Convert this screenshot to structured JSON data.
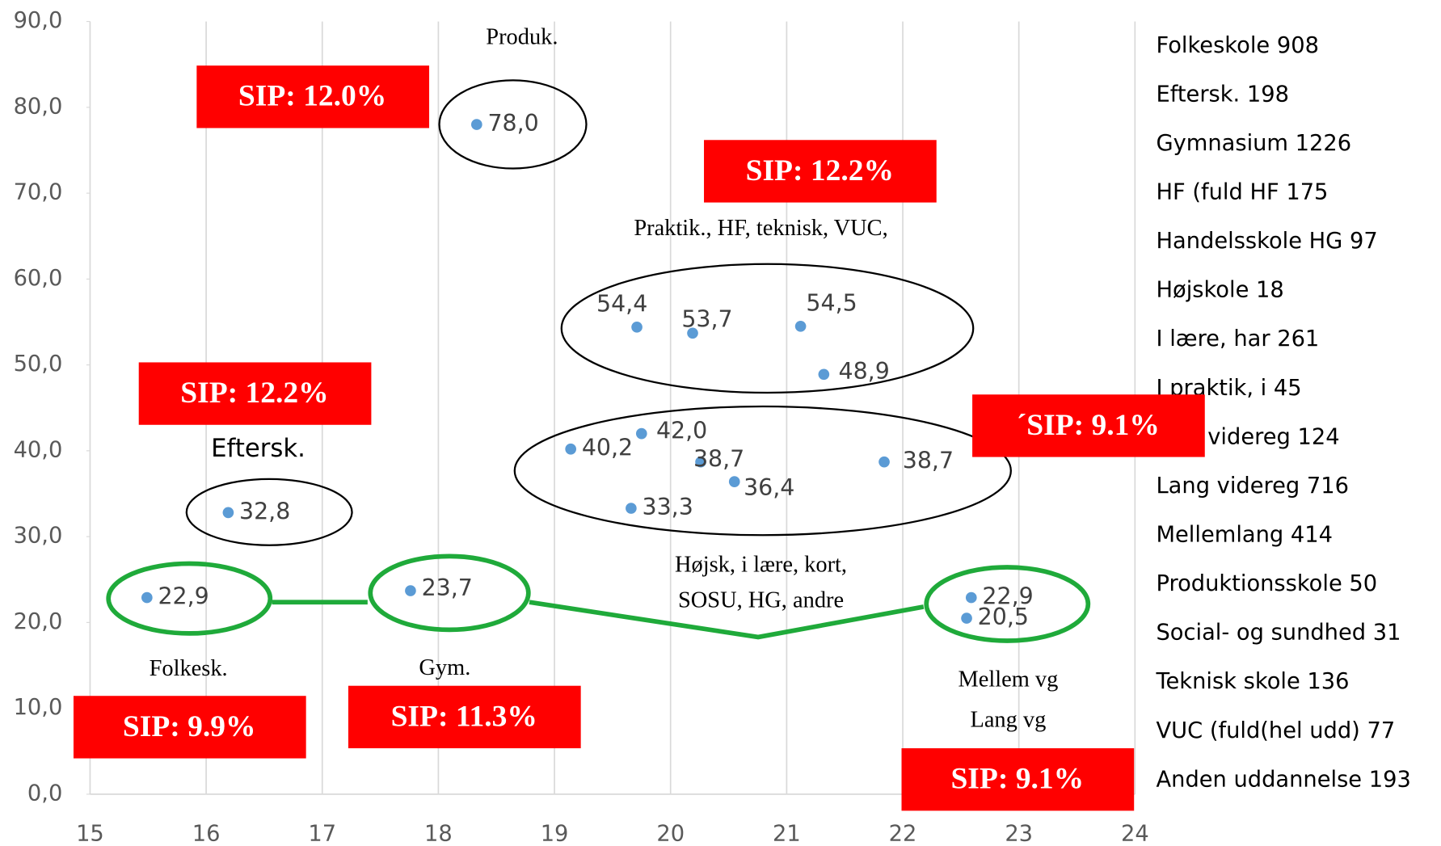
{
  "chart_data": {
    "type": "scatter",
    "color": "#5b9bd5",
    "grid": "x",
    "xlim": [
      15,
      24
    ],
    "xticks": [
      15,
      16,
      17,
      18,
      19,
      20,
      21,
      22,
      23,
      24
    ],
    "ylim": [
      0,
      90
    ],
    "yticks": [
      {
        "value": 0,
        "label": "0,0"
      },
      {
        "value": 10,
        "label": "10,0"
      },
      {
        "value": 20,
        "label": "20,0"
      },
      {
        "value": 30,
        "label": "30,0"
      },
      {
        "value": 40,
        "label": "40,0"
      },
      {
        "value": 50,
        "label": "50,0"
      },
      {
        "value": 60,
        "label": "60,0"
      },
      {
        "value": 70,
        "label": "70,0"
      },
      {
        "value": 80,
        "label": "80,0"
      },
      {
        "value": 90,
        "label": "90,0"
      }
    ],
    "x": [
      18.33,
      19.71,
      20.19,
      21.12,
      21.32,
      19.75,
      19.14,
      20.26,
      20.55,
      21.84,
      19.66,
      16.19,
      15.49,
      17.76,
      22.59,
      22.55
    ],
    "values": [
      78.0,
      54.4,
      53.7,
      54.5,
      48.9,
      42.0,
      40.2,
      38.7,
      36.4,
      38.7,
      33.3,
      32.8,
      22.9,
      23.7,
      22.9,
      20.5
    ],
    "value_labels": [
      "78,0",
      "54,4",
      "53,7",
      "54,5",
      "48,9",
      "42,0",
      "40,2",
      "38,7",
      "36,4",
      "38,7",
      "33,3",
      "32,8",
      "22,9",
      "23,7",
      "22,9",
      "20,5"
    ],
    "annotations": [
      "Produk.",
      "Praktik., HF,  teknisk, VUC,",
      "Eftersk.",
      "Højsk, i lære, kort,",
      "SOSU, HG, andre",
      "Folkesk.",
      "Gym.",
      "Mellem vg",
      "Lang vg"
    ],
    "sip_labels": [
      "SIP: 12.0%",
      "SIP: 12.2%",
      "SIP: 12.2%",
      "´SIP: 9.1%",
      "SIP: 9.9%",
      "SIP: 11.3%",
      "SIP: 9.1%"
    ],
    "side_list": [
      "Folkeskole 908",
      "Eftersk. 198",
      "Gymnasium 1226",
      "HF (fuld HF 175",
      "Handelsskole HG 97",
      "Højskole 18",
      "I lære, har 261",
      "I praktik, i 45",
      "Kort videreg 124",
      "Lang videreg 716",
      "Mellemlang 414",
      "Produktionsskole 50",
      "Social- og sundhed 31",
      "Teknisk skole 136",
      "VUC (fuld(hel udd) 77",
      "Anden uddannelse 193"
    ]
  }
}
